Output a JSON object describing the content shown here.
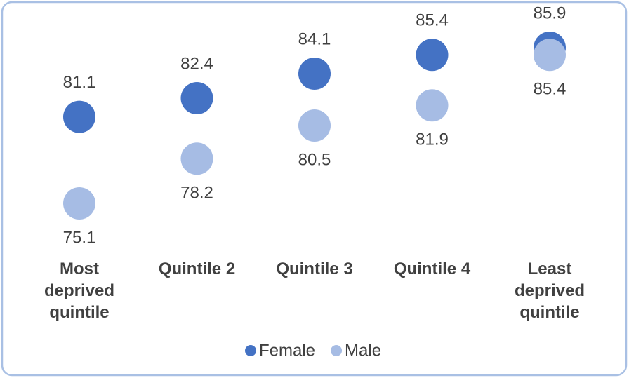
{
  "chart_data": {
    "type": "dot",
    "categories": [
      "Most deprived quintile",
      "Quintile 2",
      "Quintile 3",
      "Quintile 4",
      "Least deprived quintile"
    ],
    "series": [
      {
        "name": "Female",
        "color": "#4472c4",
        "values": [
          81.1,
          82.4,
          84.1,
          85.4,
          85.9
        ]
      },
      {
        "name": "Male",
        "color": "#a6bce4",
        "values": [
          75.1,
          78.2,
          80.5,
          81.9,
          85.4
        ]
      }
    ]
  }
}
